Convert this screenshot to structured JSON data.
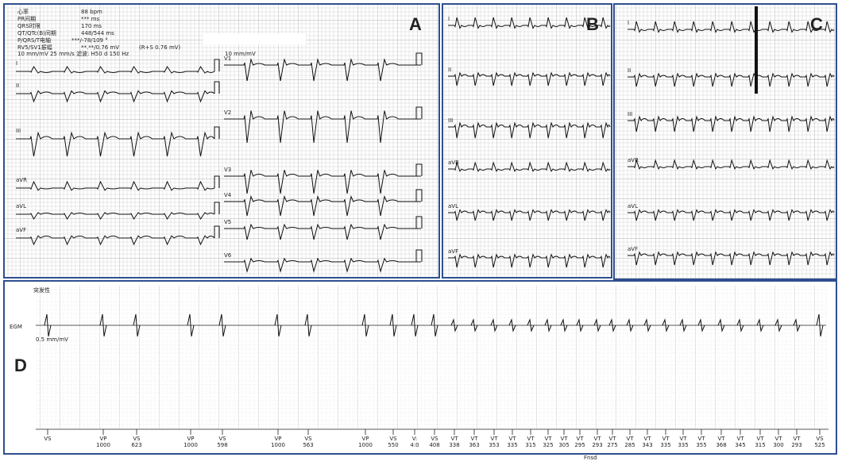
{
  "panels": {
    "A": {
      "label": "A",
      "header": [
        {
          "label": "心率",
          "value": "88 bpm"
        },
        {
          "label": "PR间期",
          "value": "*** ms"
        },
        {
          "label": "QRS时限",
          "value": "170 ms"
        },
        {
          "label": "QT/QTc(B)间期",
          "value": "448/544 ms"
        },
        {
          "label": "P/QRS/T电轴",
          "value": "***/-78/109 °"
        },
        {
          "label": "RV5/SV1振幅",
          "value": "**.**/0.76 mV",
          "note": "(R+S  0.76 mV)"
        }
      ],
      "settings": "10 mm/mV   25 mm/s   滤波: H50  d  150 Hz",
      "scale_right": "10 mm/mV",
      "leads_left": [
        "I",
        "II",
        "III",
        "aVR",
        "aVL",
        "aVF"
      ],
      "leads_right": [
        "V1",
        "V2",
        "V3",
        "V4",
        "V5",
        "V6"
      ]
    },
    "B": {
      "label": "B",
      "leads": [
        "I",
        "II",
        "III",
        "aVR",
        "aVL",
        "aVF"
      ]
    },
    "C": {
      "label": "C",
      "leads": [
        "I",
        "II",
        "III",
        "aVR",
        "aVL",
        "aVF"
      ]
    },
    "D": {
      "label": "D",
      "title": "突发性",
      "channel": "EGM",
      "gain": "0.5 mm/mV",
      "markers": [
        {
          "type": "VS"
        },
        {
          "type": "VP",
          "interval": "1000"
        },
        {
          "type": "VS",
          "interval": "623"
        },
        {
          "type": "VP",
          "interval": "1000"
        },
        {
          "type": "VS",
          "interval": "598"
        },
        {
          "type": "VP",
          "interval": "1000"
        },
        {
          "type": "VS",
          "interval": "563"
        },
        {
          "type": "VP",
          "interval": "1000"
        },
        {
          "type": "VS",
          "interval": "550"
        },
        {
          "type": "V:",
          "interval": "4:0"
        },
        {
          "type": "VS",
          "interval": "408"
        },
        {
          "type": "VT",
          "interval": "338"
        },
        {
          "type": "VT",
          "interval": "363"
        },
        {
          "type": "VT",
          "interval": "353"
        },
        {
          "type": "VT",
          "interval": "335"
        },
        {
          "type": "VT",
          "interval": "315"
        },
        {
          "type": "VT",
          "interval": "325"
        },
        {
          "type": "VT",
          "interval": "305"
        },
        {
          "type": "VT",
          "interval": "295"
        },
        {
          "type": "VT",
          "interval": "293"
        },
        {
          "type": "VT",
          "interval": "275"
        },
        {
          "type": "VT",
          "interval": "285"
        },
        {
          "type": "VT",
          "interval": "343"
        },
        {
          "type": "VT",
          "interval": "335"
        },
        {
          "type": "VT",
          "interval": "335"
        },
        {
          "type": "VT",
          "interval": "355"
        },
        {
          "type": "VT",
          "interval": "368"
        },
        {
          "type": "VT",
          "interval": "345"
        },
        {
          "type": "VT",
          "interval": "315"
        },
        {
          "type": "VT",
          "interval": "300"
        },
        {
          "type": "VT",
          "interval": "293"
        },
        {
          "type": "VS",
          "interval": "525"
        }
      ],
      "footer": "Fnsd"
    }
  }
}
